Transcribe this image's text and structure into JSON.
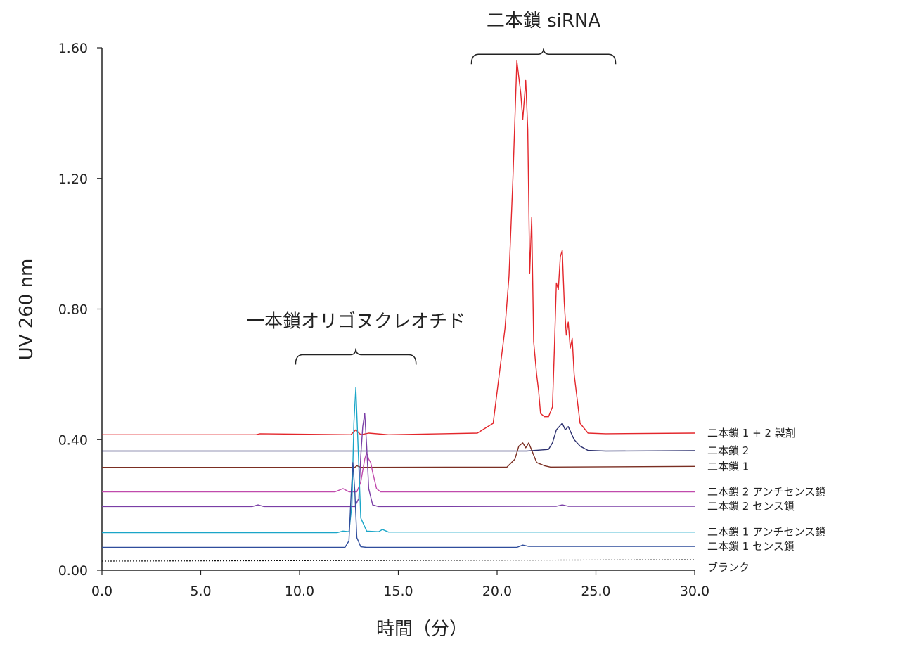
{
  "chart_data": {
    "type": "line",
    "title": "",
    "xlabel": "時間（分）",
    "ylabel": "UV 260 nm",
    "xlim": [
      0,
      30
    ],
    "ylim": [
      0,
      1.6
    ],
    "x_ticks": [
      "0.0",
      "5.0",
      "10.0",
      "15.0",
      "20.0",
      "25.0",
      "30.0"
    ],
    "y_ticks": [
      "0.00",
      "0.40",
      "0.80",
      "1.20",
      "1.60"
    ],
    "grid": false,
    "legend_placement": "right",
    "annotations": [
      {
        "text": "一本鎖オリゴヌクレオチド",
        "x_start": 9.8,
        "x_end": 15.9,
        "y": 0.63
      },
      {
        "text": "二本鎖 siRNA",
        "x_start": 18.7,
        "x_end": 26.0,
        "y": 1.55
      }
    ],
    "series": [
      {
        "name": "二本鎖 1 + 2 製剤",
        "color": "#e3262b",
        "dash": "solid",
        "x": [
          0,
          7.8,
          8.0,
          12.6,
          12.85,
          13.1,
          13.5,
          14.5,
          19.0,
          19.8,
          20.4,
          20.6,
          20.8,
          21.0,
          21.2,
          21.3,
          21.45,
          21.55,
          21.65,
          21.75,
          21.85,
          22.0,
          22.1,
          22.2,
          22.4,
          22.6,
          22.8,
          22.9,
          23.0,
          23.1,
          23.2,
          23.3,
          23.4,
          23.5,
          23.6,
          23.7,
          23.8,
          23.9,
          24.0,
          24.2,
          24.6,
          25.5,
          30.0
        ],
        "y": [
          0.415,
          0.415,
          0.418,
          0.415,
          0.43,
          0.415,
          0.42,
          0.415,
          0.42,
          0.45,
          0.74,
          0.9,
          1.2,
          1.56,
          1.46,
          1.38,
          1.5,
          1.35,
          0.91,
          1.08,
          0.7,
          0.6,
          0.55,
          0.48,
          0.47,
          0.47,
          0.5,
          0.68,
          0.88,
          0.86,
          0.96,
          0.98,
          0.82,
          0.72,
          0.76,
          0.68,
          0.71,
          0.6,
          0.55,
          0.45,
          0.42,
          0.418,
          0.42
        ]
      },
      {
        "name": "二本鎖 2",
        "color": "#2b2f6e",
        "dash": "solid",
        "x": [
          0,
          21.5,
          22.6,
          22.8,
          23.0,
          23.15,
          23.3,
          23.45,
          23.6,
          23.75,
          23.9,
          24.2,
          24.6,
          25.5,
          30.0
        ],
        "y": [
          0.365,
          0.365,
          0.37,
          0.39,
          0.43,
          0.44,
          0.45,
          0.43,
          0.44,
          0.42,
          0.4,
          0.38,
          0.367,
          0.365,
          0.366
        ]
      },
      {
        "name": "二本鎖 1",
        "color": "#7a2e22",
        "dash": "solid",
        "x": [
          0,
          12.8,
          12.9,
          13.1,
          20.5,
          20.9,
          21.1,
          21.3,
          21.45,
          21.6,
          21.8,
          22.0,
          22.4,
          22.7,
          30.0
        ],
        "y": [
          0.315,
          0.315,
          0.32,
          0.315,
          0.316,
          0.34,
          0.38,
          0.39,
          0.375,
          0.39,
          0.36,
          0.33,
          0.32,
          0.316,
          0.318
        ]
      },
      {
        "name": "二本鎖 2 アンチセンス鎖",
        "color": "#c04aac",
        "dash": "solid",
        "x": [
          0,
          11.8,
          12.2,
          12.5,
          12.9,
          13.1,
          13.3,
          13.4,
          13.5,
          13.6,
          13.7,
          13.9,
          14.1,
          30.0
        ],
        "y": [
          0.24,
          0.24,
          0.25,
          0.24,
          0.24,
          0.27,
          0.34,
          0.36,
          0.34,
          0.33,
          0.3,
          0.25,
          0.24,
          0.24
        ]
      },
      {
        "name": "二本鎖 2 センス鎖",
        "color": "#7a3ea6",
        "dash": "solid",
        "x": [
          0,
          7.6,
          7.9,
          8.2,
          12.8,
          13.0,
          13.1,
          13.2,
          13.3,
          13.4,
          13.5,
          13.7,
          14.0,
          23.0,
          23.3,
          23.6,
          30.0
        ],
        "y": [
          0.195,
          0.195,
          0.2,
          0.195,
          0.195,
          0.22,
          0.35,
          0.44,
          0.48,
          0.38,
          0.25,
          0.2,
          0.195,
          0.196,
          0.2,
          0.196,
          0.196
        ]
      },
      {
        "name": "二本鎖 1 アンチセンス鎖",
        "color": "#1aa6c8",
        "dash": "solid",
        "x": [
          0,
          11.9,
          12.2,
          12.5,
          12.65,
          12.75,
          12.85,
          12.95,
          13.1,
          13.4,
          14.0,
          14.2,
          14.5,
          30.0
        ],
        "y": [
          0.115,
          0.115,
          0.12,
          0.118,
          0.2,
          0.45,
          0.56,
          0.4,
          0.16,
          0.12,
          0.118,
          0.125,
          0.117,
          0.117
        ]
      },
      {
        "name": "二本鎖 1 センス鎖",
        "color": "#2f4d9c",
        "dash": "solid",
        "x": [
          0,
          12.3,
          12.5,
          12.6,
          12.7,
          12.8,
          12.9,
          13.1,
          13.4,
          21.0,
          21.3,
          21.6,
          30.0
        ],
        "y": [
          0.07,
          0.07,
          0.09,
          0.22,
          0.33,
          0.24,
          0.1,
          0.072,
          0.07,
          0.07,
          0.077,
          0.073,
          0.073
        ]
      },
      {
        "name": "ブランク",
        "color": "#111111",
        "dash": "dotted",
        "x": [
          0,
          30.0
        ],
        "y": [
          0.028,
          0.032
        ]
      }
    ]
  }
}
